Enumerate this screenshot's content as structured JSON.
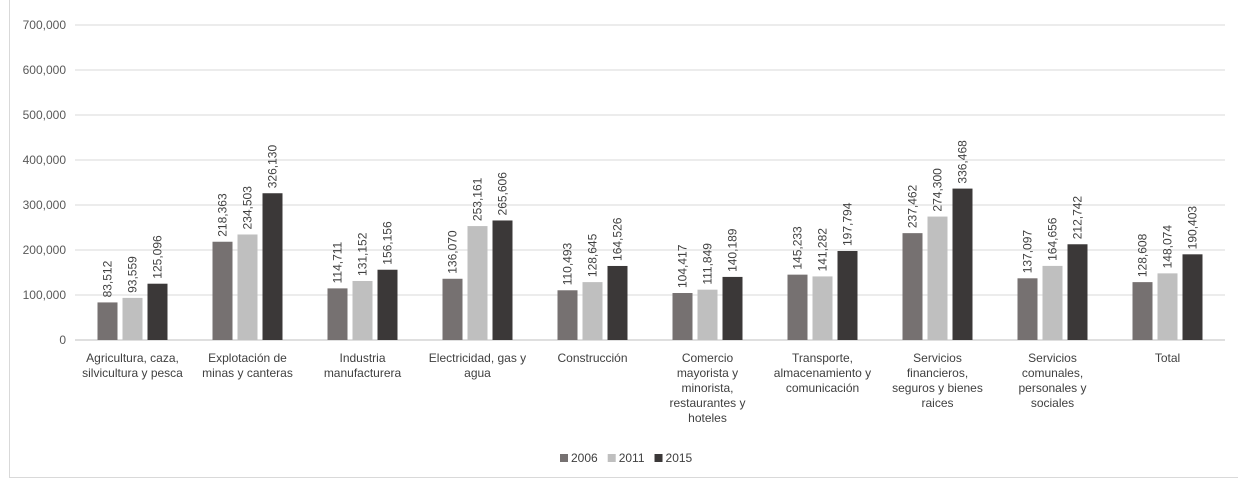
{
  "chart_data": {
    "type": "bar",
    "categories": [
      [
        "Agricultura, caza,",
        "silvicultura y pesca"
      ],
      [
        "Explotación de",
        "minas y canteras"
      ],
      [
        "Industria",
        "manufacturera"
      ],
      [
        "Electricidad, gas y",
        "agua"
      ],
      [
        "Construcción"
      ],
      [
        "Comercio",
        "mayorista y",
        "minorista,",
        "restaurantes y",
        "hoteles"
      ],
      [
        "Transporte,",
        "almacenamiento y",
        "comunicación"
      ],
      [
        "Servicios",
        "financieros,",
        "seguros y bienes",
        "raices"
      ],
      [
        "Servicios",
        "comunales,",
        "personales y",
        "sociales"
      ],
      [
        "Total"
      ]
    ],
    "series": [
      {
        "name": "2006",
        "color": "#767171",
        "values": [
          83512,
          218363,
          114711,
          136070,
          110493,
          104417,
          145233,
          237462,
          137097,
          128608
        ]
      },
      {
        "name": "2011",
        "color": "#bfbfbf",
        "values": [
          93559,
          234503,
          131152,
          253161,
          128645,
          111849,
          141282,
          274300,
          164656,
          148074
        ]
      },
      {
        "name": "2015",
        "color": "#3b3838",
        "values": [
          125096,
          326130,
          156156,
          265606,
          164526,
          140189,
          197794,
          336468,
          212742,
          190403
        ]
      }
    ],
    "data_labels": [
      [
        "83,512",
        "218,363",
        "114,711",
        "136,070",
        "110,493",
        "104,417",
        "145,233",
        "237,462",
        "137,097",
        "128,608"
      ],
      [
        "93,559",
        "234,503",
        "131,152",
        "253,161",
        "128,645",
        "111,849",
        "141,282",
        "274,300",
        "164,656",
        "148,074"
      ],
      [
        "125,096",
        "326,130",
        "156,156",
        "265,606",
        "164,526",
        "140,189",
        "197,794",
        "336,468",
        "212,742",
        "190,403"
      ]
    ],
    "y_ticks": [
      "0",
      "100,000",
      "200,000",
      "300,000",
      "400,000",
      "500,000",
      "600,000",
      "700,000"
    ],
    "ylim": [
      0,
      700000
    ],
    "grid": true,
    "legend": "bottom",
    "title": "",
    "xlabel": "",
    "ylabel": ""
  }
}
